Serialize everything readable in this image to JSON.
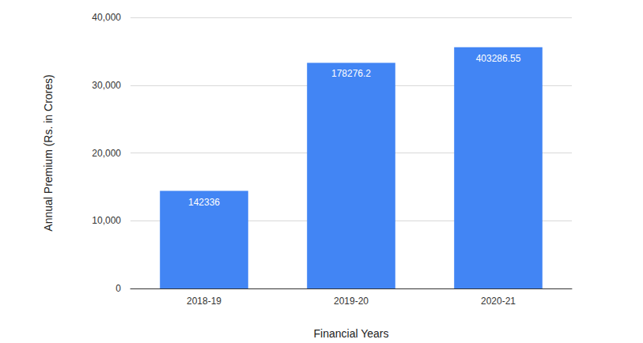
{
  "chart_data": {
    "type": "bar",
    "x_label": "Financial Years",
    "y_label": "Annual Premium (Rs. in Crores)",
    "categories": [
      "2018-19",
      "2019-20",
      "2020-21"
    ],
    "values": [
      14400,
      33300,
      35600
    ],
    "annotations": [
      "142336",
      "178276.2",
      "403286.55"
    ],
    "color": "#4285f4",
    "ylim": [
      0,
      40000
    ],
    "yticks": [
      0,
      {
        "value": 10000,
        "label": "10,000"
      },
      {
        "value": 20000,
        "label": "20,000"
      },
      {
        "value": 30000,
        "label": "30,000"
      },
      {
        "value": 40000,
        "label": "40,000"
      }
    ],
    "grid": true
  }
}
